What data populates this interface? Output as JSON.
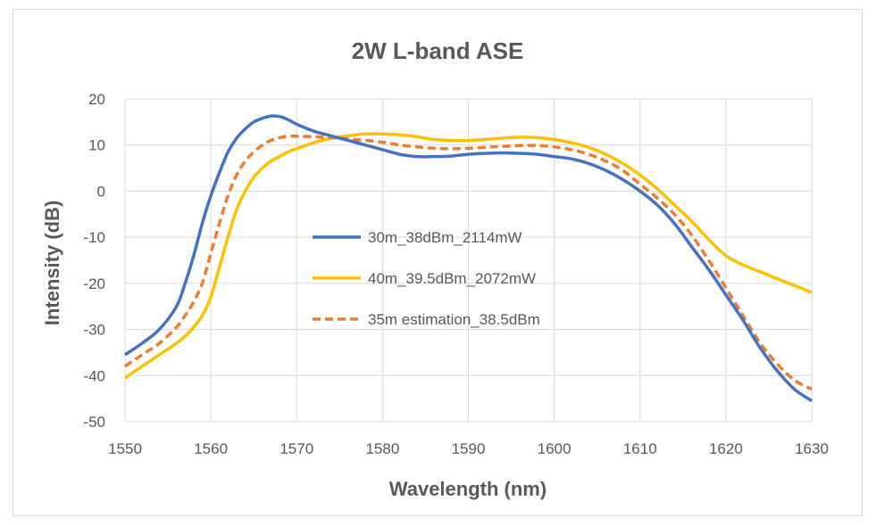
{
  "chart_data": {
    "type": "line",
    "title": "2W L-band ASE",
    "xlabel": "Wavelength (nm)",
    "ylabel": "Intensity (dB)",
    "xlim": [
      1550,
      1630
    ],
    "ylim": [
      -50,
      20
    ],
    "xticks": [
      1550,
      1560,
      1570,
      1580,
      1590,
      1600,
      1610,
      1620,
      1630
    ],
    "yticks": [
      20,
      10,
      0,
      -10,
      -20,
      -30,
      -40,
      -50
    ],
    "grid": true,
    "legend_position": "center",
    "series": [
      {
        "name": "30m_38dBm_2114mW",
        "color": "#4472c4",
        "dash": "solid",
        "x": [
          1550,
          1552,
          1554,
          1556,
          1557,
          1558,
          1559,
          1560,
          1561,
          1562,
          1563,
          1564,
          1565,
          1566,
          1567,
          1568,
          1569,
          1570,
          1572,
          1574,
          1576,
          1578,
          1580,
          1582,
          1584,
          1586,
          1588,
          1590,
          1592,
          1594,
          1596,
          1598,
          1600,
          1602,
          1604,
          1606,
          1608,
          1610,
          1612,
          1614,
          1616,
          1618,
          1620,
          1622,
          1624,
          1626,
          1628,
          1630
        ],
        "y": [
          -35.5,
          -33,
          -30,
          -25,
          -20,
          -14,
          -7,
          -1,
          4,
          8.5,
          11.5,
          13.5,
          15,
          15.8,
          16.3,
          16.2,
          15.5,
          14.5,
          13,
          12,
          11,
          10,
          9,
          8,
          7.5,
          7.5,
          7.6,
          8,
          8.2,
          8.3,
          8.2,
          8,
          7.5,
          7,
          6,
          4.5,
          2.5,
          0,
          -3,
          -7,
          -12,
          -17,
          -22.5,
          -28,
          -34,
          -39,
          -43,
          -45.5
        ]
      },
      {
        "name": "40m_39.5dBm_2072mW",
        "color": "#ffc000",
        "dash": "solid",
        "x": [
          1550,
          1552,
          1554,
          1556,
          1557,
          1558,
          1559,
          1560,
          1561,
          1562,
          1563,
          1564,
          1565,
          1566,
          1567,
          1568,
          1569,
          1570,
          1572,
          1574,
          1576,
          1578,
          1580,
          1582,
          1584,
          1586,
          1588,
          1590,
          1592,
          1594,
          1596,
          1598,
          1600,
          1602,
          1604,
          1606,
          1608,
          1610,
          1612,
          1614,
          1616,
          1618,
          1620,
          1622,
          1624,
          1626,
          1628,
          1630
        ],
        "y": [
          -40.5,
          -38,
          -35.5,
          -33,
          -31.5,
          -29.5,
          -27,
          -23,
          -16.5,
          -10,
          -4,
          0,
          3,
          5,
          6.5,
          7.5,
          8.5,
          9.2,
          10.5,
          11.5,
          12,
          12.4,
          12.4,
          12.2,
          11.8,
          11.2,
          11,
          11,
          11.2,
          11.5,
          11.7,
          11.6,
          11.2,
          10.5,
          9.5,
          8,
          6,
          3.5,
          0.5,
          -3,
          -6.5,
          -10.5,
          -14,
          -16,
          -17.5,
          -19,
          -20.5,
          -22
        ]
      },
      {
        "name": "35m estimation_38.5dBm",
        "color": "#ed7d31",
        "dash": "dashed",
        "x": [
          1550,
          1552,
          1554,
          1556,
          1557,
          1558,
          1559,
          1560,
          1561,
          1562,
          1563,
          1564,
          1565,
          1566,
          1567,
          1568,
          1569,
          1570,
          1572,
          1574,
          1576,
          1578,
          1580,
          1582,
          1584,
          1586,
          1588,
          1590,
          1592,
          1594,
          1596,
          1598,
          1600,
          1602,
          1604,
          1606,
          1608,
          1610,
          1612,
          1614,
          1616,
          1618,
          1620,
          1622,
          1624,
          1626,
          1628,
          1630
        ],
        "y": [
          -38,
          -35.5,
          -33,
          -29.5,
          -27,
          -24,
          -20,
          -13.5,
          -7,
          -1,
          3.5,
          6.5,
          8.5,
          10,
          11,
          11.6,
          11.9,
          11.9,
          11.8,
          11.6,
          11.3,
          11,
          10.6,
          10,
          9.6,
          9.3,
          9.2,
          9.3,
          9.5,
          9.7,
          9.9,
          9.9,
          9.6,
          9,
          8,
          6.5,
          4.5,
          1.5,
          -1.5,
          -5,
          -9.5,
          -15,
          -21,
          -27,
          -33,
          -37.5,
          -41,
          -43
        ]
      }
    ]
  }
}
